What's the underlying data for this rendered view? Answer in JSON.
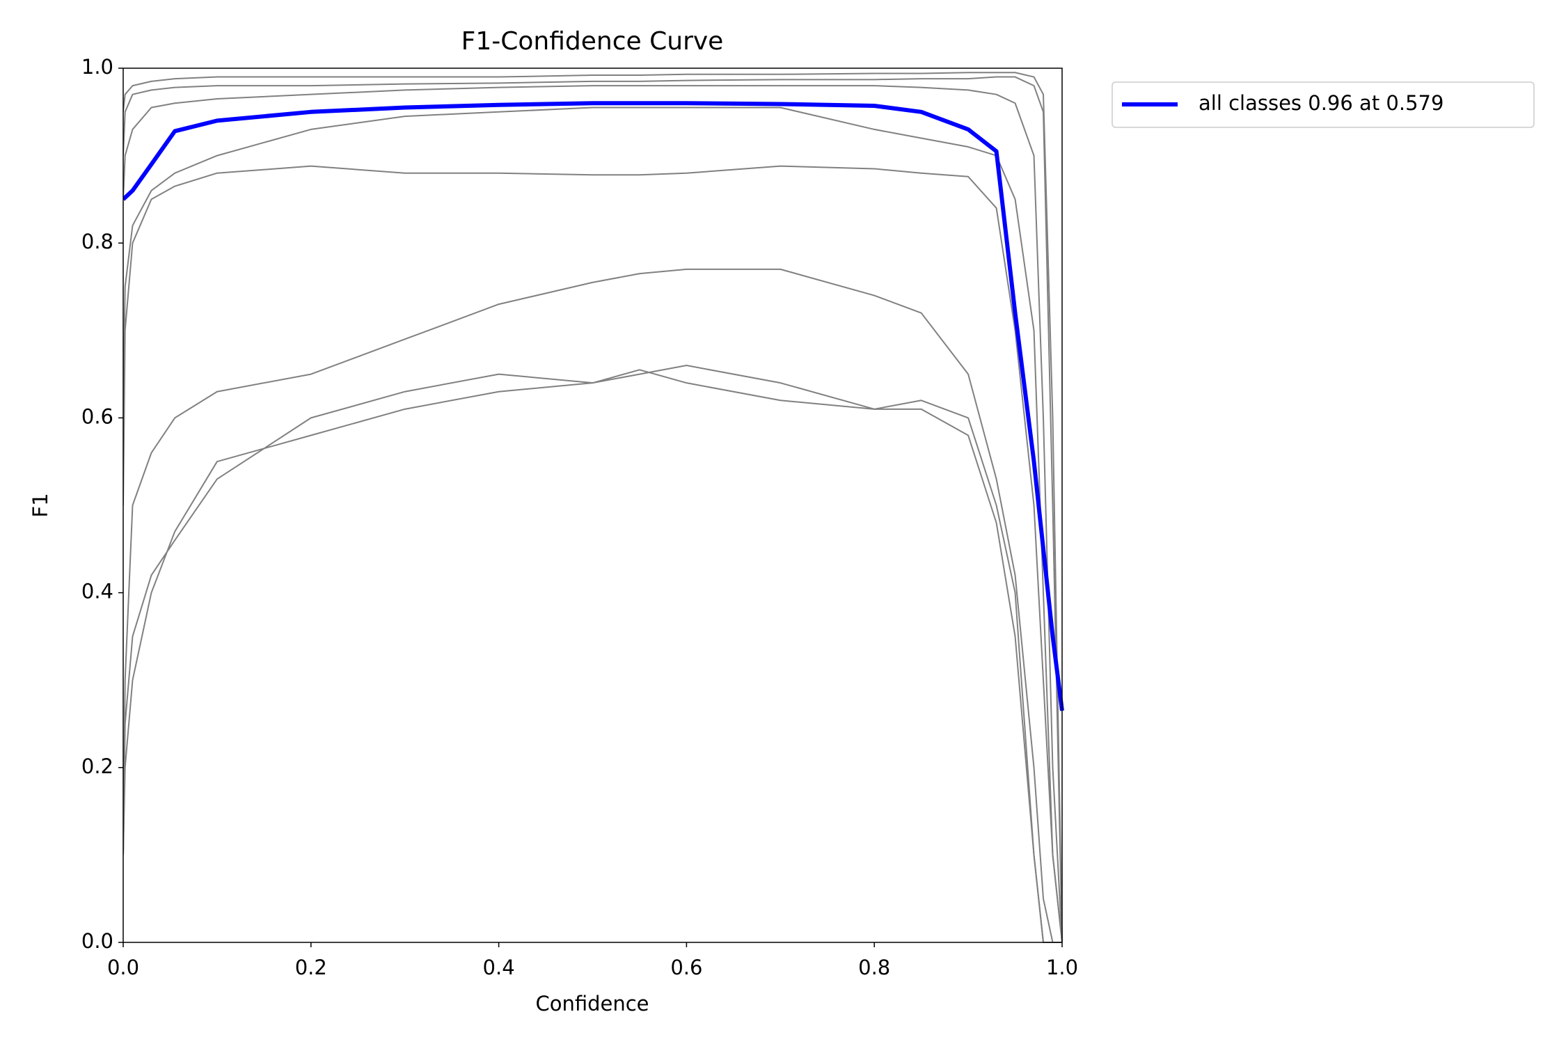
{
  "chart_data": {
    "type": "line",
    "title": "F1-Confidence Curve",
    "x_label": "Confidence",
    "y_label": "F1",
    "x": [
      0,
      0.002,
      0.01,
      0.03,
      0.055,
      0.1,
      0.2,
      0.3,
      0.4,
      0.5,
      0.55,
      0.6,
      0.7,
      0.8,
      0.85,
      0.9,
      0.93,
      0.95,
      0.97,
      0.98,
      0.99,
      1.0
    ],
    "series": [
      {
        "color": "#808080",
        "values": [
          0.1,
          0.3,
          0.5,
          0.56,
          0.6,
          0.63,
          0.65,
          0.69,
          0.73,
          0.755,
          0.765,
          0.77,
          0.77,
          0.74,
          0.72,
          0.65,
          0.53,
          0.42,
          0.2,
          0.05,
          0,
          0
        ]
      },
      {
        "color": "#808080",
        "values": [
          0.1,
          0.25,
          0.35,
          0.42,
          0.46,
          0.53,
          0.6,
          0.63,
          0.65,
          0.64,
          0.65,
          0.66,
          0.64,
          0.61,
          0.62,
          0.6,
          0.5,
          0.4,
          0.1,
          0,
          0,
          0
        ]
      },
      {
        "color": "#808080",
        "values": [
          0.1,
          0.2,
          0.3,
          0.4,
          0.47,
          0.55,
          0.58,
          0.61,
          0.63,
          0.64,
          0.655,
          0.64,
          0.62,
          0.61,
          0.61,
          0.58,
          0.48,
          0.35,
          0.1,
          0,
          0,
          0
        ]
      },
      {
        "color": "#808080",
        "values": [
          0.5,
          0.7,
          0.8,
          0.85,
          0.865,
          0.88,
          0.888,
          0.88,
          0.88,
          0.878,
          0.878,
          0.88,
          0.888,
          0.885,
          0.88,
          0.876,
          0.84,
          0.7,
          0.5,
          0.3,
          0.1,
          0
        ]
      },
      {
        "color": "#808080",
        "values": [
          0.9,
          0.95,
          0.97,
          0.975,
          0.978,
          0.98,
          0.98,
          0.982,
          0.983,
          0.985,
          0.985,
          0.986,
          0.987,
          0.987,
          0.988,
          0.988,
          0.99,
          0.99,
          0.98,
          0.95,
          0.5,
          0
        ]
      },
      {
        "color": "#808080",
        "values": [
          0.95,
          0.97,
          0.98,
          0.985,
          0.988,
          0.99,
          0.99,
          0.99,
          0.99,
          0.992,
          0.992,
          0.993,
          0.993,
          0.994,
          0.994,
          0.995,
          0.995,
          0.995,
          0.99,
          0.97,
          0.6,
          0
        ]
      },
      {
        "color": "#808080",
        "values": [
          0.6,
          0.75,
          0.82,
          0.86,
          0.88,
          0.9,
          0.93,
          0.945,
          0.95,
          0.955,
          0.955,
          0.955,
          0.955,
          0.93,
          0.92,
          0.91,
          0.9,
          0.85,
          0.7,
          0.4,
          0.1,
          0
        ]
      },
      {
        "color": "#808080",
        "values": [
          0.85,
          0.9,
          0.93,
          0.955,
          0.96,
          0.965,
          0.97,
          0.975,
          0.978,
          0.98,
          0.98,
          0.98,
          0.98,
          0.98,
          0.978,
          0.975,
          0.97,
          0.96,
          0.9,
          0.6,
          0.2,
          0
        ]
      },
      {
        "name": "all classes 0.96 at 0.579",
        "color": "#0000ff",
        "values": [
          0.85,
          0.852,
          0.86,
          0.89,
          0.928,
          0.94,
          0.95,
          0.955,
          0.958,
          0.96,
          0.96,
          0.96,
          0.959,
          0.957,
          0.95,
          0.93,
          0.905,
          0.72,
          0.55,
          0.45,
          0.35,
          0.265
        ]
      }
    ],
    "xlim": [
      0,
      1
    ],
    "ylim": [
      0,
      1
    ],
    "xticks": [
      {
        "value": 0,
        "label": "0.0"
      },
      0.2,
      0.4,
      0.6,
      0.8,
      {
        "value": 1,
        "label": "1.0"
      }
    ],
    "yticks": [
      {
        "value": 0,
        "label": "0.0"
      },
      0.2,
      0.4,
      0.6,
      0.8,
      {
        "value": 1,
        "label": "1.0"
      }
    ],
    "grid": false,
    "legend": "outside upper right"
  }
}
